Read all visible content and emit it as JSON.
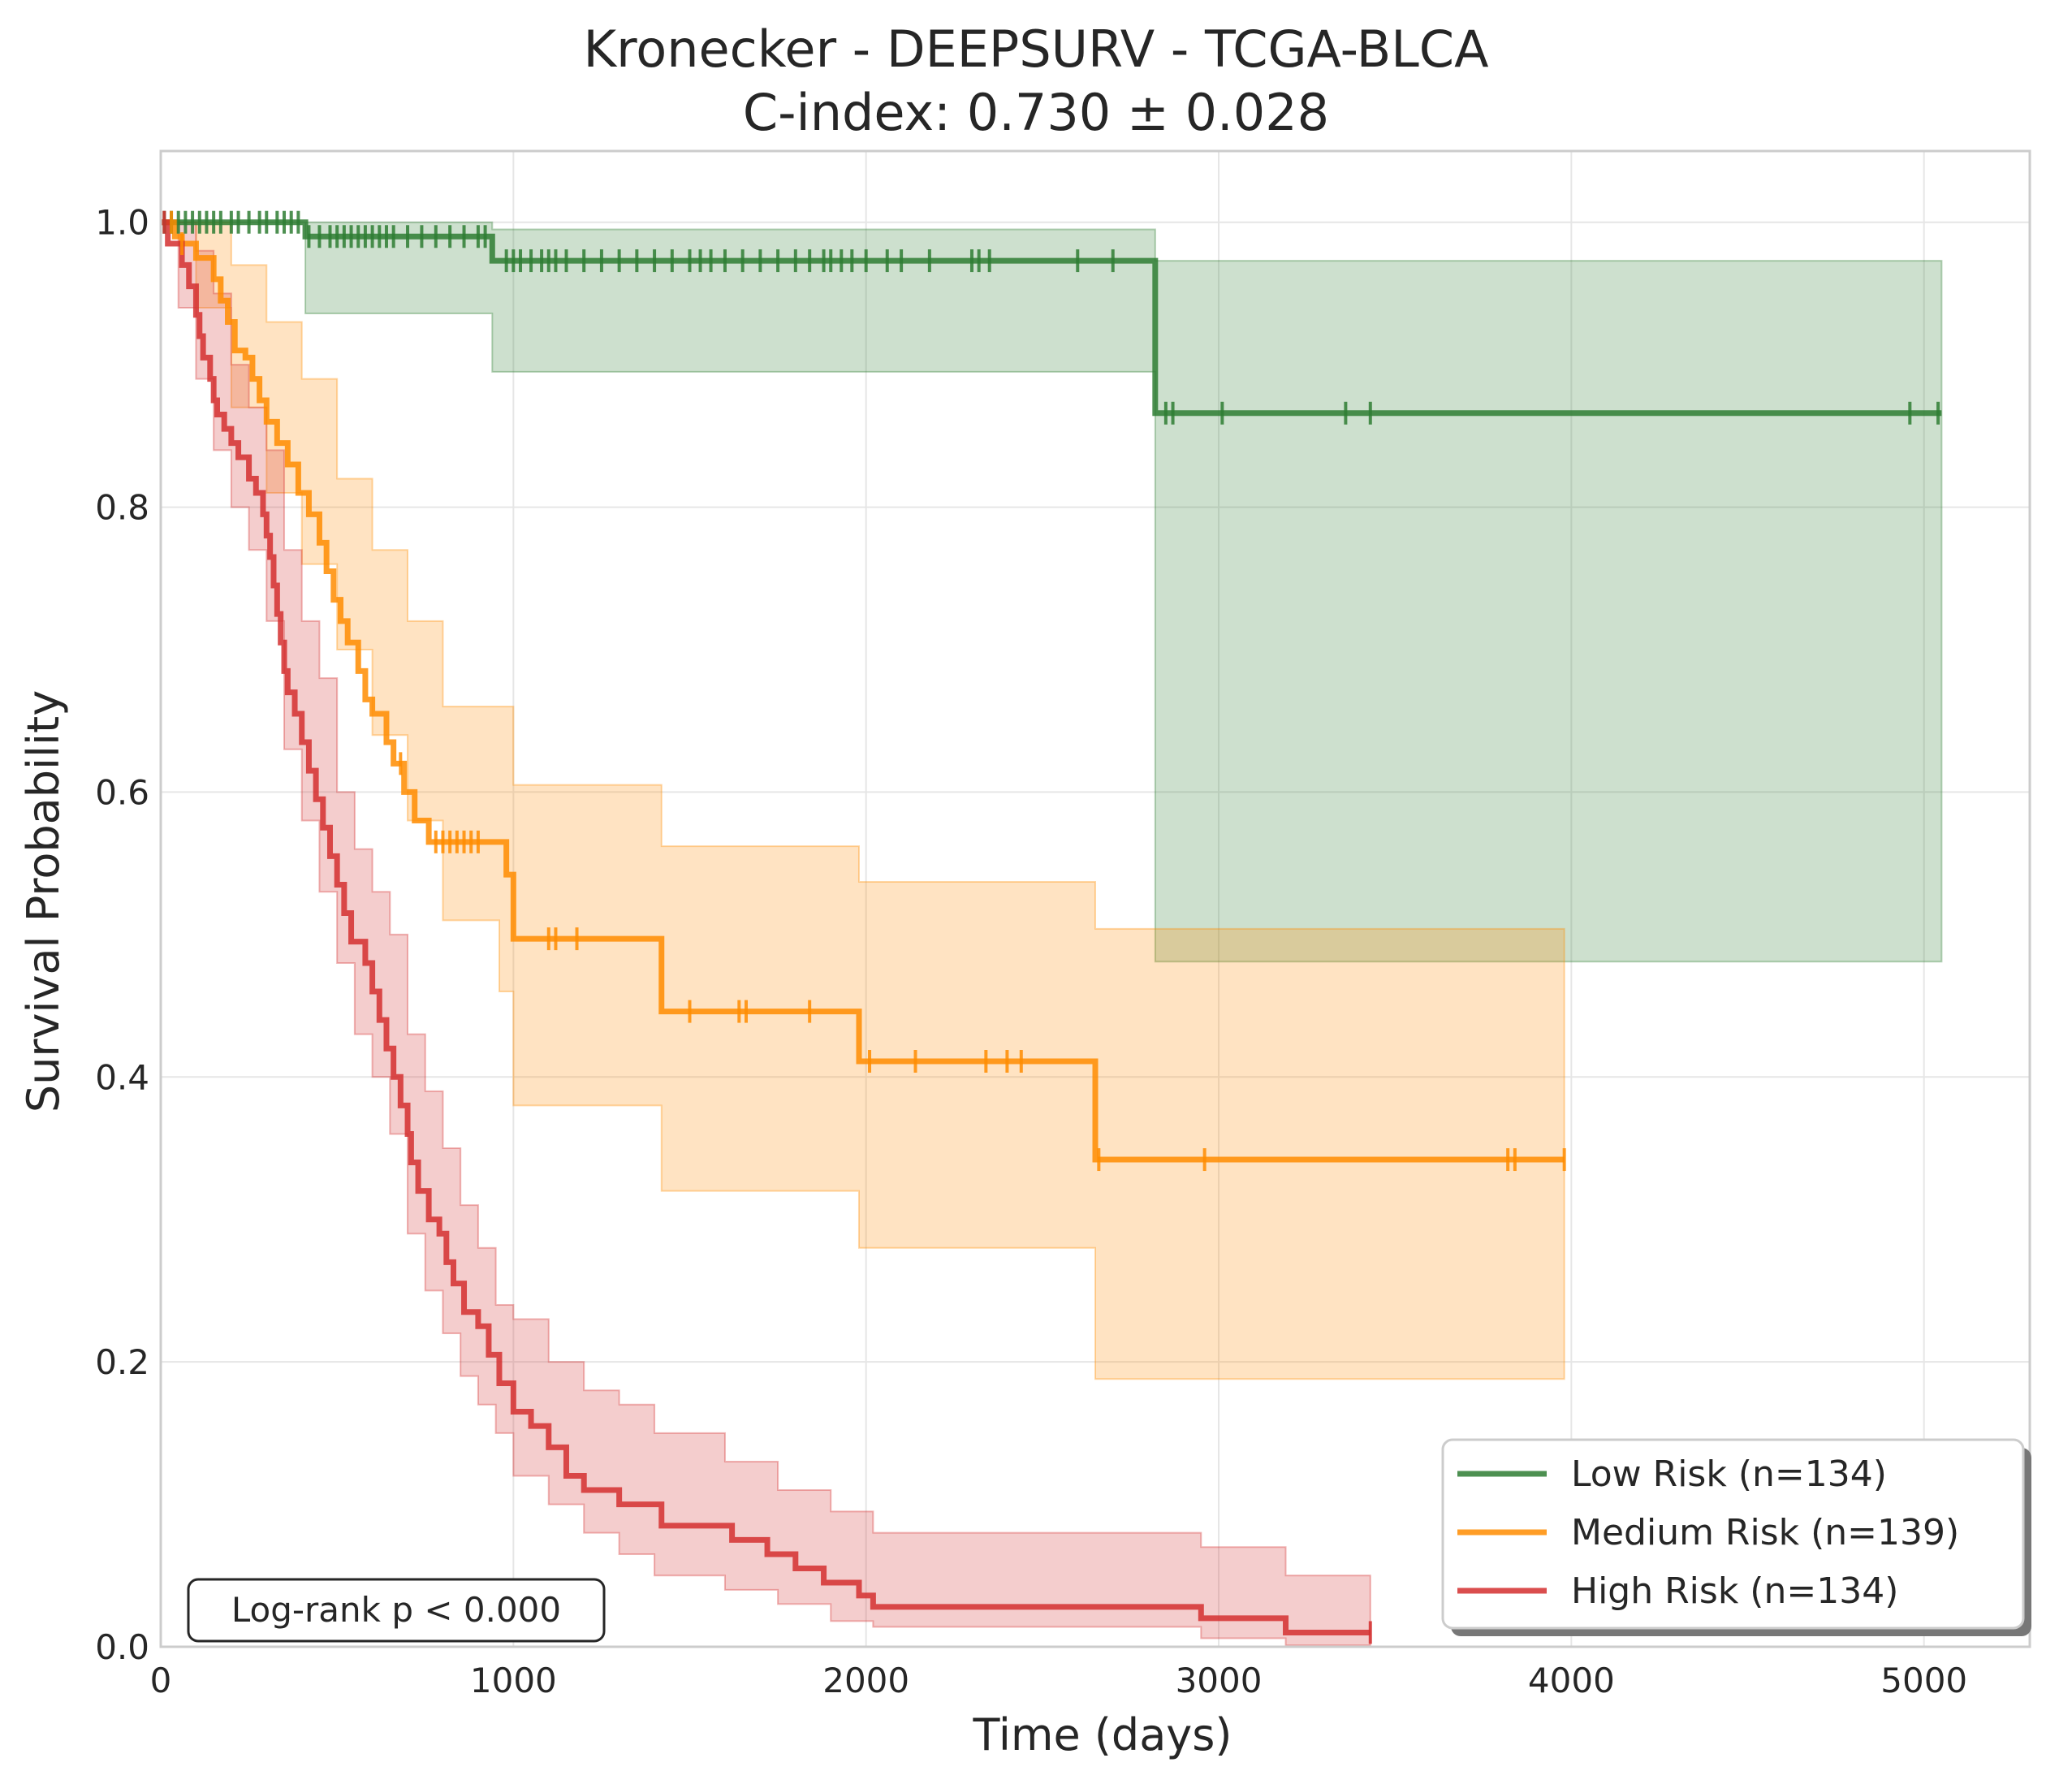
{
  "chart_data": {
    "type": "line",
    "subtype": "kaplan-meier",
    "title": "Kronecker - DEEPSURV - TCGA-BLCA",
    "subtitle": "C-index: 0.730 ± 0.028",
    "xlabel": "Time (days)",
    "ylabel": "Survival Probability",
    "xlim": [
      0,
      5300
    ],
    "ylim": [
      0,
      1.05
    ],
    "xticks": [
      0,
      1000,
      2000,
      3000,
      4000,
      5000
    ],
    "xtick_labels": [
      "0",
      "1000",
      "2000",
      "3000",
      "4000",
      "5000"
    ],
    "yticks": [
      0.0,
      0.2,
      0.4,
      0.6,
      0.8,
      1.0
    ],
    "ytick_labels": [
      "0.0",
      "0.2",
      "0.4",
      "0.6",
      "0.8",
      "1.0"
    ],
    "grid": true,
    "legend_position": "lower-right",
    "annotation": "Log-rank p < 0.000",
    "series": [
      {
        "name": "Low Risk (n=134)",
        "color": "#2e7d32",
        "steps": [
          [
            0,
            1.0
          ],
          [
            410,
            0.99
          ],
          [
            940,
            0.973
          ],
          [
            2820,
            0.866
          ],
          [
            5050,
            0.866
          ]
        ],
        "ci_steps": [
          [
            0,
            1.0,
            1.0
          ],
          [
            410,
            0.936,
            1.0
          ],
          [
            940,
            0.895,
            0.995
          ],
          [
            2820,
            0.481,
            0.973
          ],
          [
            5050,
            0.481,
            0.973
          ]
        ],
        "censor": [
          10,
          30,
          50,
          70,
          90,
          110,
          130,
          150,
          170,
          200,
          220,
          250,
          280,
          300,
          330,
          350,
          370,
          390,
          420,
          450,
          480,
          500,
          520,
          540,
          560,
          580,
          600,
          620,
          640,
          660,
          700,
          740,
          780,
          820,
          860,
          900,
          920,
          980,
          1000,
          1020,
          1050,
          1080,
          1100,
          1120,
          1150,
          1200,
          1250,
          1300,
          1350,
          1400,
          1450,
          1500,
          1530,
          1560,
          1600,
          1650,
          1700,
          1750,
          1800,
          1840,
          1880,
          1900,
          1930,
          1960,
          2000,
          2060,
          2100,
          2180,
          2300,
          2320,
          2350,
          2600,
          2700,
          2850,
          2870,
          3010,
          3360,
          3430,
          4960,
          5040
        ]
      },
      {
        "name": "Medium Risk (n=139)",
        "color": "#ff8c00",
        "steps": [
          [
            0,
            1.0
          ],
          [
            40,
            0.99
          ],
          [
            60,
            0.985
          ],
          [
            100,
            0.975
          ],
          [
            150,
            0.96
          ],
          [
            170,
            0.945
          ],
          [
            190,
            0.93
          ],
          [
            210,
            0.91
          ],
          [
            240,
            0.905
          ],
          [
            260,
            0.89
          ],
          [
            280,
            0.875
          ],
          [
            300,
            0.86
          ],
          [
            330,
            0.845
          ],
          [
            360,
            0.83
          ],
          [
            390,
            0.81
          ],
          [
            420,
            0.795
          ],
          [
            450,
            0.775
          ],
          [
            470,
            0.755
          ],
          [
            490,
            0.735
          ],
          [
            510,
            0.72
          ],
          [
            530,
            0.705
          ],
          [
            560,
            0.685
          ],
          [
            580,
            0.665
          ],
          [
            600,
            0.655
          ],
          [
            640,
            0.635
          ],
          [
            660,
            0.62
          ],
          [
            690,
            0.6
          ],
          [
            720,
            0.58
          ],
          [
            760,
            0.565
          ],
          [
            980,
            0.542
          ],
          [
            1000,
            0.497
          ],
          [
            1420,
            0.446
          ],
          [
            1980,
            0.411
          ],
          [
            2650,
            0.342
          ],
          [
            3980,
            0.342
          ]
        ],
        "ci_steps": [
          [
            0,
            1.0,
            1.0
          ],
          [
            100,
            0.94,
            1.0
          ],
          [
            200,
            0.87,
            0.97
          ],
          [
            300,
            0.81,
            0.93
          ],
          [
            400,
            0.76,
            0.89
          ],
          [
            500,
            0.7,
            0.82
          ],
          [
            600,
            0.64,
            0.77
          ],
          [
            700,
            0.58,
            0.72
          ],
          [
            800,
            0.51,
            0.66
          ],
          [
            960,
            0.46,
            0.66
          ],
          [
            1000,
            0.38,
            0.605
          ],
          [
            1420,
            0.32,
            0.562
          ],
          [
            1980,
            0.28,
            0.537
          ],
          [
            2650,
            0.188,
            0.504
          ],
          [
            3980,
            0.188,
            0.504
          ]
        ],
        "censor": [
          30,
          60,
          680,
          780,
          800,
          820,
          840,
          860,
          880,
          900,
          1100,
          1120,
          1180,
          1500,
          1640,
          1660,
          1840,
          2010,
          2140,
          2340,
          2400,
          2440,
          2660,
          2960,
          3820,
          3840,
          3980
        ]
      },
      {
        "name": "High Risk (n=134)",
        "color": "#d32f2f",
        "steps": [
          [
            0,
            1.0
          ],
          [
            20,
            0.985
          ],
          [
            60,
            0.97
          ],
          [
            80,
            0.955
          ],
          [
            100,
            0.935
          ],
          [
            110,
            0.92
          ],
          [
            120,
            0.905
          ],
          [
            140,
            0.89
          ],
          [
            150,
            0.875
          ],
          [
            160,
            0.865
          ],
          [
            180,
            0.855
          ],
          [
            200,
            0.845
          ],
          [
            220,
            0.835
          ],
          [
            250,
            0.82
          ],
          [
            270,
            0.81
          ],
          [
            290,
            0.795
          ],
          [
            300,
            0.78
          ],
          [
            310,
            0.765
          ],
          [
            320,
            0.745
          ],
          [
            330,
            0.725
          ],
          [
            340,
            0.705
          ],
          [
            350,
            0.685
          ],
          [
            360,
            0.67
          ],
          [
            380,
            0.655
          ],
          [
            400,
            0.635
          ],
          [
            420,
            0.615
          ],
          [
            440,
            0.595
          ],
          [
            460,
            0.575
          ],
          [
            480,
            0.555
          ],
          [
            500,
            0.535
          ],
          [
            520,
            0.515
          ],
          [
            540,
            0.495
          ],
          [
            580,
            0.48
          ],
          [
            600,
            0.46
          ],
          [
            620,
            0.44
          ],
          [
            640,
            0.42
          ],
          [
            660,
            0.4
          ],
          [
            680,
            0.38
          ],
          [
            700,
            0.36
          ],
          [
            710,
            0.34
          ],
          [
            730,
            0.32
          ],
          [
            760,
            0.3
          ],
          [
            790,
            0.29
          ],
          [
            810,
            0.27
          ],
          [
            830,
            0.255
          ],
          [
            860,
            0.235
          ],
          [
            900,
            0.225
          ],
          [
            930,
            0.205
          ],
          [
            960,
            0.185
          ],
          [
            1000,
            0.165
          ],
          [
            1050,
            0.155
          ],
          [
            1100,
            0.14
          ],
          [
            1150,
            0.12
          ],
          [
            1200,
            0.11
          ],
          [
            1300,
            0.1
          ],
          [
            1420,
            0.085
          ],
          [
            1620,
            0.075
          ],
          [
            1720,
            0.065
          ],
          [
            1800,
            0.055
          ],
          [
            1880,
            0.045
          ],
          [
            1980,
            0.036
          ],
          [
            2020,
            0.028
          ],
          [
            2950,
            0.02
          ],
          [
            3190,
            0.01
          ],
          [
            3430,
            0.01
          ]
        ],
        "ci_steps": [
          [
            0,
            1.0,
            1.0
          ],
          [
            50,
            0.94,
            1.0
          ],
          [
            100,
            0.89,
            0.98
          ],
          [
            150,
            0.84,
            0.95
          ],
          [
            200,
            0.8,
            0.9
          ],
          [
            250,
            0.77,
            0.87
          ],
          [
            300,
            0.72,
            0.84
          ],
          [
            350,
            0.63,
            0.77
          ],
          [
            400,
            0.58,
            0.72
          ],
          [
            450,
            0.53,
            0.68
          ],
          [
            500,
            0.48,
            0.6
          ],
          [
            550,
            0.43,
            0.56
          ],
          [
            600,
            0.4,
            0.53
          ],
          [
            650,
            0.36,
            0.5
          ],
          [
            700,
            0.29,
            0.43
          ],
          [
            750,
            0.25,
            0.39
          ],
          [
            800,
            0.22,
            0.35
          ],
          [
            850,
            0.19,
            0.31
          ],
          [
            900,
            0.17,
            0.28
          ],
          [
            950,
            0.15,
            0.24
          ],
          [
            1000,
            0.12,
            0.23
          ],
          [
            1100,
            0.1,
            0.2
          ],
          [
            1200,
            0.08,
            0.18
          ],
          [
            1300,
            0.065,
            0.17
          ],
          [
            1400,
            0.05,
            0.15
          ],
          [
            1600,
            0.04,
            0.13
          ],
          [
            1750,
            0.03,
            0.11
          ],
          [
            1900,
            0.018,
            0.095
          ],
          [
            2020,
            0.014,
            0.08
          ],
          [
            2950,
            0.006,
            0.07
          ],
          [
            3190,
            0.001,
            0.05
          ],
          [
            3430,
            0.001,
            0.05
          ]
        ],
        "censor": [
          10,
          3430
        ]
      }
    ]
  }
}
